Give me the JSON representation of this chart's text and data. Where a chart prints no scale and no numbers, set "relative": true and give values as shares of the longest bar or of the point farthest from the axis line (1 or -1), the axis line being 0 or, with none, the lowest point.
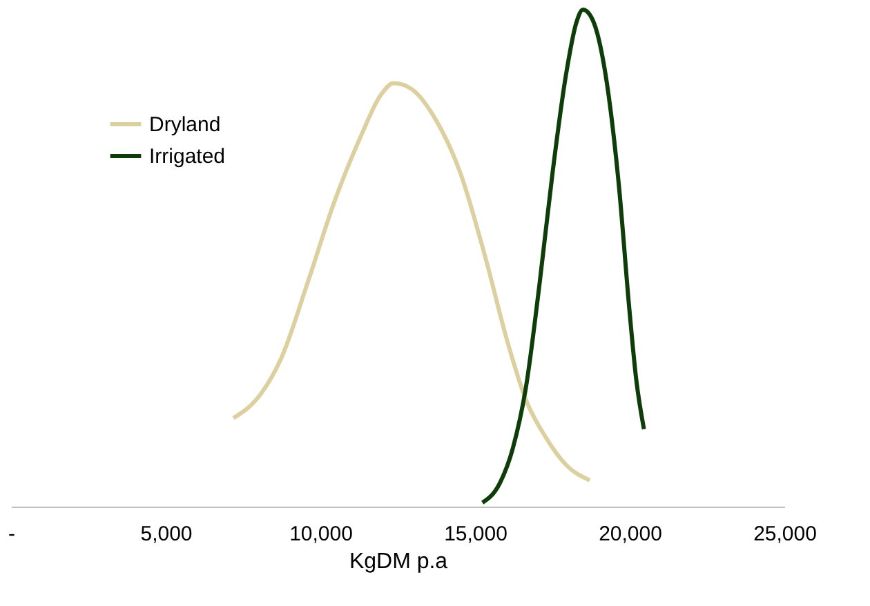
{
  "chart_data": {
    "type": "line",
    "xlabel": "KgDM p.a",
    "relative": true,
    "xlim": [
      0,
      25000
    ],
    "xticks": [
      {
        "value": 0,
        "label": "-"
      },
      {
        "value": 5000,
        "label": "5,000"
      },
      {
        "value": 10000,
        "label": "10,000"
      },
      {
        "value": 15000,
        "label": "15,000"
      },
      {
        "value": 20000,
        "label": "20,000"
      },
      {
        "value": 25000,
        "label": "25,000"
      }
    ],
    "grid": false,
    "legend": "top left",
    "marker": "none",
    "line_style": "solid",
    "series": [
      {
        "name": "Dryland",
        "color": "#ddd0a0",
        "x": [
          7190,
          8090,
          8730,
          9590,
          10450,
          11300,
          11940,
          12370,
          12930,
          13660,
          14510,
          15370,
          16010,
          16650,
          17290,
          17940,
          18710
        ],
        "values": [
          0.178,
          0.228,
          0.298,
          0.451,
          0.613,
          0.744,
          0.827,
          0.852,
          0.841,
          0.786,
          0.674,
          0.493,
          0.34,
          0.214,
          0.139,
          0.084,
          0.053
        ]
      },
      {
        "name": "Irrigated",
        "color": "#0e3d0a",
        "x": [
          15240,
          15800,
          16220,
          16650,
          17090,
          17510,
          17940,
          18280,
          18490,
          18790,
          19220,
          19650,
          19990,
          20210,
          20460
        ],
        "values": [
          0.008,
          0.047,
          0.117,
          0.242,
          0.451,
          0.674,
          0.869,
          0.975,
          1.0,
          0.981,
          0.869,
          0.646,
          0.396,
          0.256,
          0.156
        ]
      }
    ]
  }
}
